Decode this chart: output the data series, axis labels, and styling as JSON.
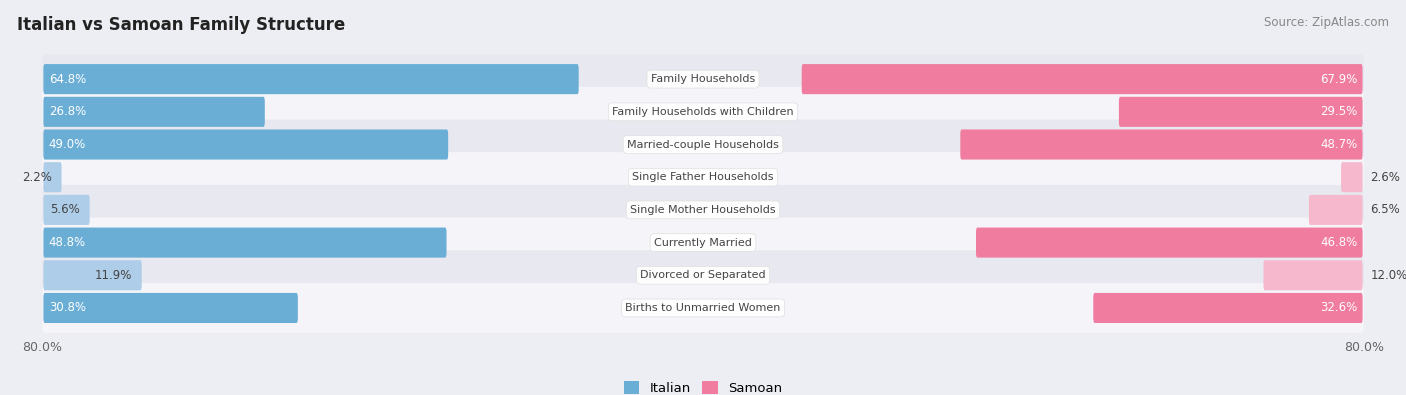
{
  "title": "Italian vs Samoan Family Structure",
  "source": "Source: ZipAtlas.com",
  "categories": [
    "Family Households",
    "Family Households with Children",
    "Married-couple Households",
    "Single Father Households",
    "Single Mother Households",
    "Currently Married",
    "Divorced or Separated",
    "Births to Unmarried Women"
  ],
  "italian_values": [
    64.8,
    26.8,
    49.0,
    2.2,
    5.6,
    48.8,
    11.9,
    30.8
  ],
  "samoan_values": [
    67.9,
    29.5,
    48.7,
    2.6,
    6.5,
    46.8,
    12.0,
    32.6
  ],
  "italian_color": "#6aaed6",
  "samoan_color": "#f07ca0",
  "italian_color_light": "#aecde8",
  "samoan_color_light": "#f5b8cc",
  "max_value": 80.0,
  "bg_color": "#edeef3",
  "row_bg_even": "#e8e9f0",
  "row_bg_odd": "#f5f5f9",
  "label_color_dark": "#444444",
  "label_color_white": "#ffffff",
  "axis_label_left": "80.0%",
  "axis_label_right": "80.0%",
  "threshold": 20.0
}
